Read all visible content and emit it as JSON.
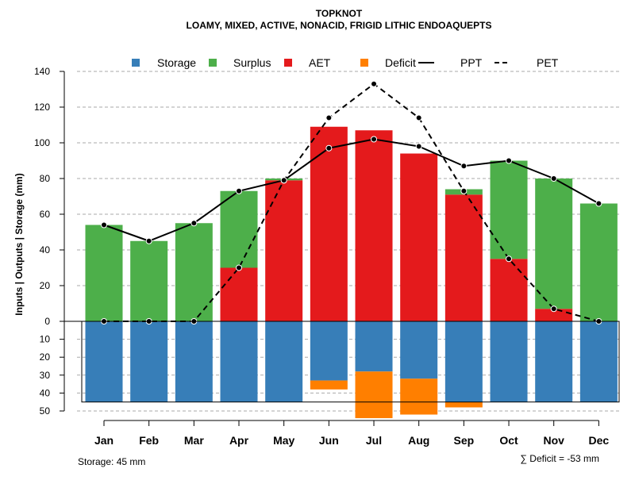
{
  "chart_data": {
    "type": "bar",
    "title": "TOPKNOT",
    "subtitle": "LOAMY, MIXED, ACTIVE, NONACID, FRIGID LITHIC ENDOAQUEPTS",
    "ylabel": "Inputs | Outputs | Storage    (mm)",
    "categories": [
      "Jan",
      "Feb",
      "Mar",
      "Apr",
      "May",
      "Jun",
      "Jul",
      "Aug",
      "Sep",
      "Oct",
      "Nov",
      "Dec"
    ],
    "ylim_upper": [
      0,
      140
    ],
    "ylim_lower": [
      0,
      50
    ],
    "yticks_upper": [
      "140",
      "120",
      "100",
      "80",
      "60",
      "40",
      "20",
      "0"
    ],
    "yticks_lower": [
      "10",
      "20",
      "30",
      "40",
      "50"
    ],
    "legend": [
      {
        "name": "Storage",
        "type": "box",
        "color": "#377eb8"
      },
      {
        "name": "Surplus",
        "type": "box",
        "color": "#4daf4a"
      },
      {
        "name": "AET",
        "type": "box",
        "color": "#e41a1c"
      },
      {
        "name": "Deficit",
        "type": "box",
        "color": "#ff7f00"
      },
      {
        "name": "PPT",
        "type": "solid-line",
        "color": "#000000"
      },
      {
        "name": "PET",
        "type": "dashed-line",
        "color": "#000000"
      }
    ],
    "series": [
      {
        "name": "AET",
        "values": [
          0,
          0,
          0,
          30,
          79,
          109,
          107,
          94,
          71,
          35,
          7,
          0
        ]
      },
      {
        "name": "Surplus",
        "values": [
          54,
          45,
          55,
          43,
          1,
          0,
          0,
          0,
          3,
          55,
          73,
          66
        ]
      },
      {
        "name": "Storage",
        "values": [
          45,
          45,
          45,
          45,
          45,
          33,
          28,
          32,
          45,
          45,
          45,
          45
        ]
      },
      {
        "name": "Deficit",
        "values": [
          0,
          0,
          0,
          0,
          0,
          5,
          26,
          20,
          3,
          0,
          0,
          0
        ]
      },
      {
        "name": "PPT",
        "values": [
          54,
          45,
          55,
          73,
          79,
          97,
          102,
          98,
          87,
          90,
          80,
          66
        ]
      },
      {
        "name": "PET",
        "values": [
          0,
          0,
          0,
          30,
          79,
          114,
          133,
          114,
          73,
          35,
          7,
          0
        ]
      }
    ],
    "storage_capacity": 45,
    "footer_left": "Storage: 45 mm",
    "footer_right": "∑ Deficit = -53 mm"
  }
}
